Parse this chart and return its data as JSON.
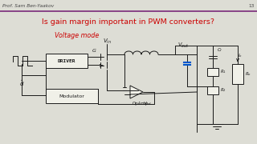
{
  "bg_color": "#ddddd5",
  "circuit_bg": "#f0f0e8",
  "header_text": "Prof. Sam Ben-Yaakov",
  "page_num": "13",
  "header_line_color": "#7a2a7a",
  "title_text": "Is gain margin important in PWM converters?",
  "title_color": "#cc0000",
  "subtitle_text": "Voltage mode",
  "subtitle_color": "#cc0000",
  "title_fontsize": 6.8,
  "subtitle_fontsize": 5.8,
  "header_fontsize": 4.2,
  "ink_color": "#1a1a1a",
  "lw": 0.7
}
